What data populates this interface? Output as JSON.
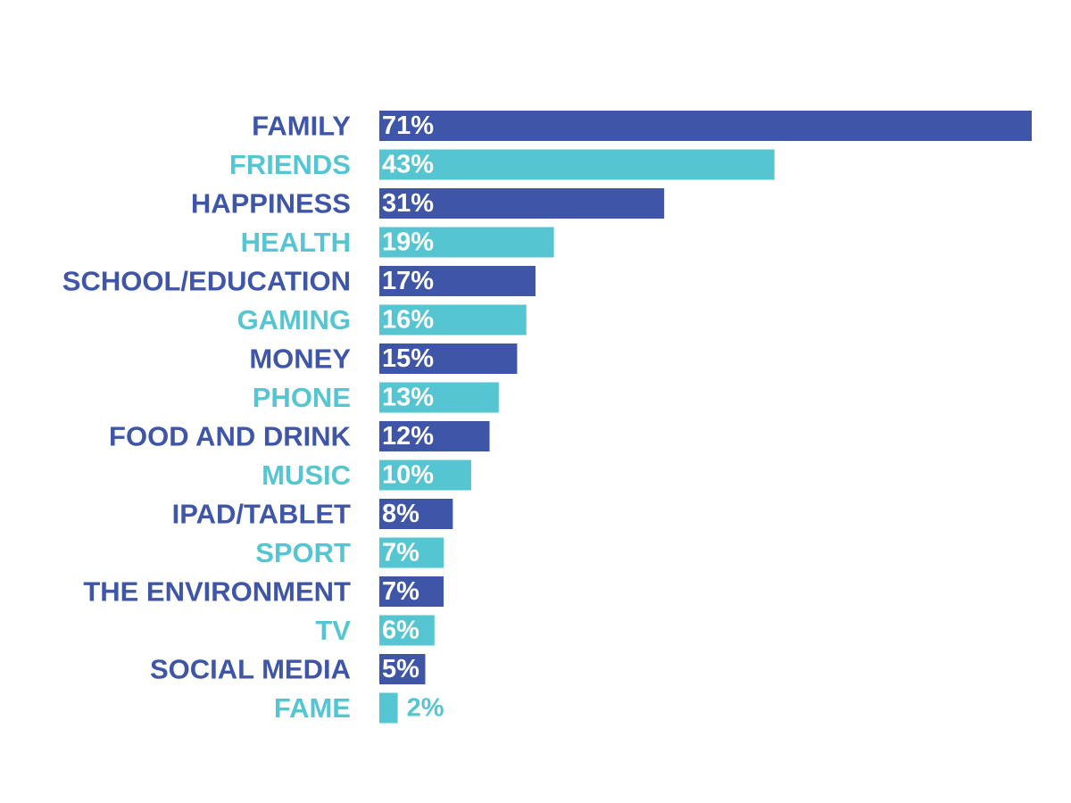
{
  "chart_data": {
    "type": "bar",
    "orientation": "horizontal",
    "categories": [
      "FAMILY",
      "FRIENDS",
      "HAPPINESS",
      "HEALTH",
      "SCHOOL/EDUCATION",
      "GAMING",
      "MONEY",
      "PHONE",
      "FOOD AND DRINK",
      "MUSIC",
      "IPAD/TABLET",
      "SPORT",
      "THE ENVIRONMENT",
      "TV",
      "SOCIAL MEDIA",
      "FAME"
    ],
    "values": [
      71,
      43,
      31,
      19,
      17,
      16,
      15,
      13,
      12,
      10,
      8,
      7,
      7,
      6,
      5,
      2
    ],
    "value_labels": [
      "71%",
      "43%",
      "31%",
      "19%",
      "17%",
      "16%",
      "15%",
      "13%",
      "12%",
      "10%",
      "8%",
      "7%",
      "7%",
      "6%",
      "5%",
      "2%"
    ],
    "unit": "%",
    "colors": [
      "#3e55a8",
      "#55c6d1"
    ],
    "grid": false,
    "legend": "none",
    "xlim": [
      0,
      71
    ]
  }
}
